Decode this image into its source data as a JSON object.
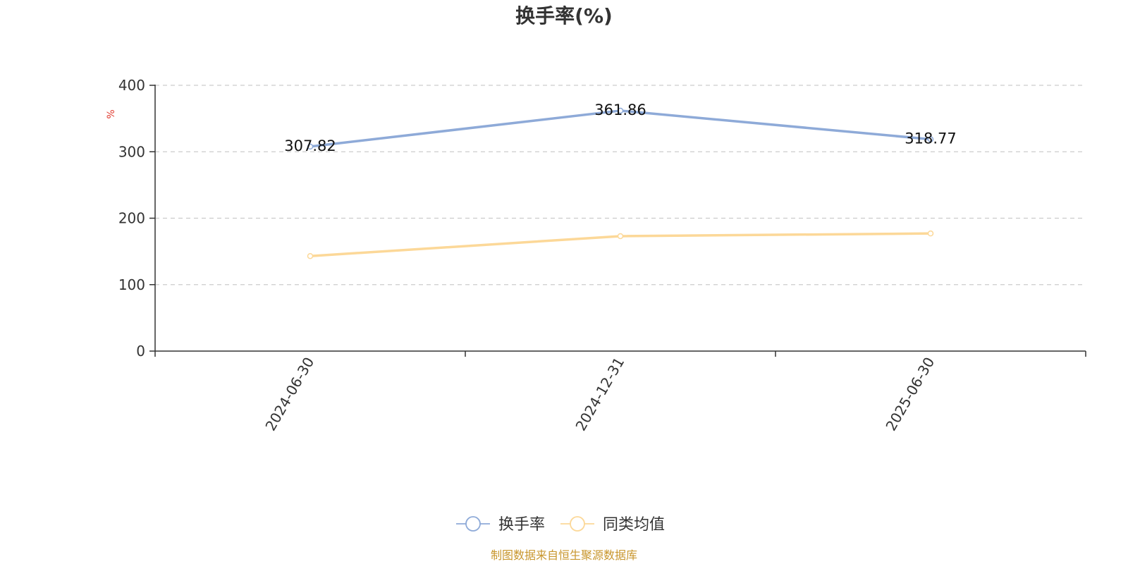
{
  "chart_data": {
    "type": "line",
    "title": "换手率(%)",
    "ylabel": "%",
    "xlabel": "",
    "categories": [
      "2024-06-30",
      "2024-12-31",
      "2025-06-30"
    ],
    "ylim": [
      0,
      400
    ],
    "yticks": [
      0,
      100,
      200,
      300,
      400
    ],
    "grid": true,
    "legend_position": "bottom",
    "series": [
      {
        "name": "换手率",
        "values": [
          307.82,
          361.86,
          318.77
        ],
        "color": "#8eaad8",
        "show_labels": true,
        "labels": [
          "307.82",
          "361.86",
          "318.77"
        ]
      },
      {
        "name": "同类均值",
        "values": [
          143,
          173,
          177
        ],
        "color": "#fcd898",
        "show_labels": false
      }
    ],
    "source": "制图数据来自恒生聚源数据库"
  }
}
